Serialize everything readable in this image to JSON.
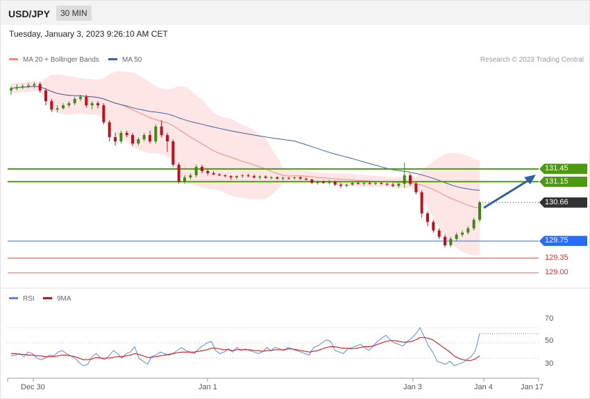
{
  "header": {
    "symbol": "USD/JPY",
    "timeframe": "30 MIN",
    "datetime": "Tuesday, January 3, 2023 9:26:10 AM CET"
  },
  "legend": {
    "ma20": {
      "label": "MA 20 + Bollinger Bands",
      "color": "#f28b82"
    },
    "ma50": {
      "label": "MA 50",
      "color": "#3a5f9a"
    },
    "credit": "Research © 2023 Trading Central"
  },
  "levels": {
    "res2": {
      "label": "131.45",
      "value": 131.45,
      "color": "#4c9a0f"
    },
    "res1": {
      "label": "131.15",
      "value": 131.15,
      "color": "#4c9a0f"
    },
    "last": {
      "label": "130.66",
      "value": 130.66,
      "color": "#333333"
    },
    "pivot": {
      "label": "129.75",
      "value": 129.75,
      "color": "#2a6df4"
    },
    "sup1": {
      "label": "129.35",
      "value": 129.35,
      "color": "#e06666"
    },
    "sup2": {
      "label": "129.00",
      "value": 129.0,
      "color": "#e06666"
    }
  },
  "rsi_legend": {
    "rsi": {
      "label": "RSI",
      "color": "#5b86e5"
    },
    "ma": {
      "label": "9MA",
      "color": "#e00000"
    }
  },
  "rsi_axis": {
    "l70": "70",
    "l50": "50",
    "l30": "30"
  },
  "x_axis": {
    "t0": "Dec 30",
    "t1": "Jan 1",
    "t2": "Jan 3",
    "t3": "Jan 4",
    "t4": "Jan 17"
  },
  "chart_data": {
    "type": "candlestick",
    "ylim": [
      128.9,
      133.8
    ],
    "rsi_ylim": [
      0,
      100
    ],
    "x_ticks": [
      "Dec 30",
      "Jan 1",
      "Jan 3",
      "Jan 4",
      "Jan 17"
    ],
    "candles": [
      [
        133.3,
        133.4,
        133.2,
        133.35
      ],
      [
        133.35,
        133.45,
        133.3,
        133.38
      ],
      [
        133.38,
        133.45,
        133.33,
        133.4
      ],
      [
        133.4,
        133.48,
        133.35,
        133.42
      ],
      [
        133.42,
        133.5,
        133.35,
        133.45
      ],
      [
        133.45,
        133.5,
        133.25,
        133.3
      ],
      [
        133.3,
        133.35,
        132.95,
        133.05
      ],
      [
        133.05,
        133.1,
        132.8,
        132.85
      ],
      [
        132.85,
        132.95,
        132.78,
        132.88
      ],
      [
        132.88,
        133.0,
        132.85,
        132.95
      ],
      [
        132.95,
        133.05,
        132.9,
        133.0
      ],
      [
        133.0,
        133.15,
        132.95,
        133.1
      ],
      [
        133.1,
        133.2,
        133.05,
        133.15
      ],
      [
        133.15,
        133.2,
        132.9,
        132.95
      ],
      [
        132.95,
        133.05,
        132.85,
        133.0
      ],
      [
        133.0,
        133.05,
        132.88,
        132.95
      ],
      [
        132.95,
        133.0,
        132.5,
        132.55
      ],
      [
        132.55,
        132.6,
        132.1,
        132.2
      ],
      [
        132.2,
        132.3,
        132.0,
        132.1
      ],
      [
        132.1,
        132.35,
        132.05,
        132.3
      ],
      [
        132.3,
        132.35,
        132.2,
        132.25
      ],
      [
        132.25,
        132.3,
        132.0,
        132.05
      ],
      [
        132.05,
        132.2,
        132.0,
        132.15
      ],
      [
        132.15,
        132.3,
        132.1,
        132.25
      ],
      [
        132.25,
        132.35,
        132.05,
        132.1
      ],
      [
        132.1,
        132.5,
        132.05,
        132.45
      ],
      [
        132.45,
        132.6,
        132.2,
        132.25
      ],
      [
        132.25,
        132.3,
        131.85,
        132.1
      ],
      [
        132.1,
        132.15,
        131.5,
        131.55
      ],
      [
        131.55,
        131.6,
        131.1,
        131.15
      ],
      [
        131.15,
        131.3,
        131.1,
        131.25
      ],
      [
        131.25,
        131.35,
        131.2,
        131.3
      ],
      [
        131.3,
        131.55,
        131.25,
        131.5
      ],
      [
        131.5,
        131.55,
        131.35,
        131.4
      ],
      [
        131.4,
        131.45,
        131.3,
        131.35
      ],
      [
        131.35,
        131.4,
        131.3,
        131.32
      ],
      [
        131.32,
        131.35,
        131.28,
        131.3
      ],
      [
        131.3,
        131.32,
        131.25,
        131.28
      ],
      [
        131.28,
        131.3,
        131.2,
        131.25
      ],
      [
        131.25,
        131.3,
        131.2,
        131.28
      ],
      [
        131.28,
        131.33,
        131.24,
        131.3
      ],
      [
        131.3,
        131.34,
        131.25,
        131.28
      ],
      [
        131.28,
        131.32,
        131.22,
        131.25
      ],
      [
        131.25,
        131.3,
        131.2,
        131.27
      ],
      [
        131.27,
        131.3,
        131.22,
        131.24
      ],
      [
        131.24,
        131.28,
        131.2,
        131.25
      ],
      [
        131.25,
        131.28,
        131.2,
        131.22
      ],
      [
        131.22,
        131.27,
        131.18,
        131.24
      ],
      [
        131.24,
        131.26,
        131.2,
        131.23
      ],
      [
        131.23,
        131.27,
        131.2,
        131.25
      ],
      [
        131.25,
        131.28,
        131.2,
        131.22
      ],
      [
        131.22,
        131.25,
        131.18,
        131.2
      ],
      [
        131.2,
        131.22,
        131.1,
        131.12
      ],
      [
        131.12,
        131.18,
        131.08,
        131.15
      ],
      [
        131.15,
        131.18,
        131.1,
        131.12
      ],
      [
        131.12,
        131.2,
        131.08,
        131.15
      ],
      [
        131.15,
        131.18,
        131.05,
        131.08
      ],
      [
        131.08,
        131.12,
        131.0,
        131.05
      ],
      [
        131.05,
        131.1,
        131.02,
        131.08
      ],
      [
        131.08,
        131.15,
        131.05,
        131.12
      ],
      [
        131.12,
        131.15,
        131.08,
        131.1
      ],
      [
        131.1,
        131.14,
        131.06,
        131.12
      ],
      [
        131.12,
        131.15,
        131.08,
        131.1
      ],
      [
        131.1,
        131.14,
        131.07,
        131.12
      ],
      [
        131.12,
        131.15,
        131.08,
        131.1
      ],
      [
        131.1,
        131.12,
        131.05,
        131.08
      ],
      [
        131.08,
        131.12,
        131.02,
        131.05
      ],
      [
        131.05,
        131.12,
        131.0,
        131.1
      ],
      [
        131.1,
        131.6,
        131.0,
        131.3
      ],
      [
        131.3,
        131.35,
        131.05,
        131.1
      ],
      [
        131.1,
        131.15,
        130.85,
        130.9
      ],
      [
        130.9,
        130.95,
        130.3,
        130.4
      ],
      [
        130.4,
        130.45,
        130.1,
        130.2
      ],
      [
        130.2,
        130.25,
        129.95,
        130.0
      ],
      [
        130.0,
        130.05,
        129.8,
        129.85
      ],
      [
        129.85,
        129.9,
        129.6,
        129.65
      ],
      [
        129.65,
        129.85,
        129.6,
        129.8
      ],
      [
        129.8,
        129.95,
        129.75,
        129.9
      ],
      [
        129.9,
        130.0,
        129.85,
        129.95
      ],
      [
        129.95,
        130.1,
        129.9,
        130.05
      ],
      [
        130.05,
        130.3,
        130.0,
        130.25
      ],
      [
        130.25,
        130.7,
        130.2,
        130.66
      ]
    ],
    "rsi": [
      33,
      34,
      36,
      32,
      38,
      36,
      30,
      28,
      30,
      34,
      33,
      38,
      40,
      36,
      33,
      30,
      24,
      20,
      22,
      32,
      36,
      30,
      28,
      33,
      40,
      36,
      30,
      36,
      38,
      45,
      30,
      26,
      22,
      32,
      34,
      38,
      36,
      34,
      36,
      40,
      44,
      40,
      38,
      36,
      42,
      46,
      50,
      52,
      40,
      36,
      38,
      42,
      38,
      44,
      40,
      42,
      40,
      38,
      36,
      38,
      44,
      40,
      44,
      42,
      40,
      44,
      42,
      40,
      38,
      36,
      34,
      44,
      46,
      50,
      54,
      52,
      40,
      38,
      36,
      42,
      44,
      46,
      48,
      44,
      40,
      46,
      52,
      56,
      60,
      54,
      50,
      48,
      46,
      52,
      56,
      62,
      70,
      58,
      46,
      38,
      26,
      24,
      22,
      26,
      20,
      22,
      24,
      28,
      32,
      40,
      62
    ],
    "rsi_ma": [
      36,
      36,
      35,
      35,
      34,
      34,
      33,
      33,
      32,
      32,
      32,
      33,
      34,
      34,
      33,
      32,
      30,
      28,
      28,
      29,
      31,
      30,
      30,
      30,
      31,
      32,
      32,
      33,
      34,
      36,
      35,
      33,
      31,
      31,
      32,
      33,
      34,
      35,
      36,
      37,
      38,
      38,
      38,
      38,
      39,
      40,
      41,
      43,
      43,
      42,
      41,
      41,
      40,
      41,
      41,
      41,
      41,
      40,
      40,
      39,
      40,
      40,
      41,
      41,
      41,
      42,
      42,
      41,
      40,
      39,
      38,
      39,
      40,
      42,
      44,
      45,
      45,
      44,
      43,
      43,
      42,
      43,
      44,
      45,
      45,
      46,
      48,
      50,
      52,
      53,
      53,
      52,
      51,
      51,
      52,
      54,
      57,
      57,
      56,
      54,
      50,
      46,
      42,
      38,
      33,
      30,
      28,
      27,
      27,
      29,
      33
    ]
  }
}
